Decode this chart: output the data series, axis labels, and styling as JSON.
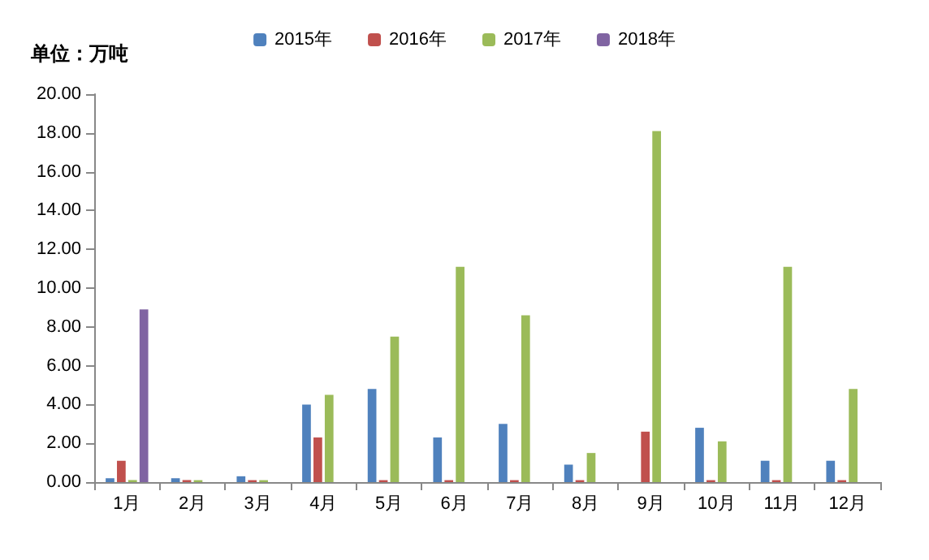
{
  "chart_data": {
    "type": "bar",
    "ylabel": "单位：万吨",
    "categories": [
      "1月",
      "2月",
      "3月",
      "4月",
      "5月",
      "6月",
      "7月",
      "8月",
      "9月",
      "10月",
      "11月",
      "12月"
    ],
    "series": [
      {
        "name": "2015年",
        "color": "#4f81bd",
        "values": [
          0.2,
          0.2,
          0.3,
          4.0,
          4.8,
          2.3,
          3.0,
          0.9,
          0,
          2.8,
          1.1,
          1.1
        ]
      },
      {
        "name": "2016年",
        "color": "#c0504d",
        "values": [
          1.1,
          0.1,
          0.1,
          2.3,
          0.1,
          0.1,
          0.1,
          0.1,
          2.6,
          0.1,
          0.1,
          0.1
        ]
      },
      {
        "name": "2017年",
        "color": "#9bbb59",
        "values": [
          0.1,
          0.1,
          0.1,
          4.5,
          7.5,
          11.1,
          8.6,
          1.5,
          18.1,
          2.1,
          11.1,
          4.8
        ]
      },
      {
        "name": "2018年",
        "color": "#8064a2",
        "values": [
          8.9,
          null,
          null,
          null,
          null,
          null,
          null,
          null,
          null,
          null,
          null,
          null
        ]
      }
    ],
    "ylim": [
      0,
      20
    ],
    "yticks": [
      {
        "value": 0,
        "label": "0.00"
      },
      {
        "value": 2,
        "label": "2.00"
      },
      {
        "value": 4,
        "label": "4.00"
      },
      {
        "value": 6,
        "label": "6.00"
      },
      {
        "value": 8,
        "label": "8.00"
      },
      {
        "value": 10,
        "label": "10.00"
      },
      {
        "value": 12,
        "label": "12.00"
      },
      {
        "value": 14,
        "label": "14.00"
      },
      {
        "value": 16,
        "label": "16.00"
      },
      {
        "value": 18,
        "label": "18.00"
      },
      {
        "value": 20,
        "label": "20.00"
      }
    ],
    "grid": false,
    "legend": "top"
  }
}
